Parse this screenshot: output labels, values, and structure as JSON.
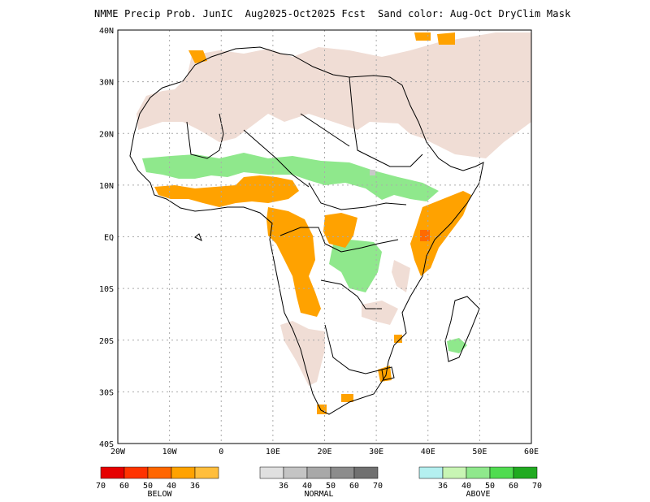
{
  "title": "NMME Precip Prob. JunIC  Aug2025-Oct2025 Fcst  Sand color: Aug-Oct DryClim Mask",
  "axes": {
    "lat_ticks": [
      "40N",
      "30N",
      "20N",
      "10N",
      "EQ",
      "10S",
      "20S",
      "30S",
      "40S"
    ],
    "lon_ticks": [
      "20W",
      "10W",
      "0",
      "10E",
      "20E",
      "30E",
      "40E",
      "50E",
      "60E"
    ]
  },
  "colors": {
    "dry_mask": "#f0ddd5",
    "above": "#8fe88c",
    "below_40": "#ffa200",
    "below_36": "#ffbe3c",
    "below_50": "#ff6a00",
    "normal": "#c8c8c8",
    "grid": "#aaaaaa",
    "coast": "#000000"
  },
  "legend": {
    "below": {
      "label": "BELOW",
      "colors": [
        "#e60000",
        "#ff3300",
        "#ff6600",
        "#ffa200",
        "#ffbe3c"
      ],
      "ticks": [
        "70",
        "60",
        "50",
        "40",
        "36"
      ]
    },
    "normal": {
      "label": "NORMAL",
      "colors": [
        "#e0e0e0",
        "#c4c4c4",
        "#a8a8a8",
        "#8c8c8c",
        "#707070"
      ],
      "ticks": [
        "36",
        "40",
        "50",
        "60",
        "70"
      ]
    },
    "above": {
      "label": "ABOVE",
      "colors": [
        "#b4f0f0",
        "#c8f5b4",
        "#8fe88c",
        "#50dc50",
        "#20aa20"
      ],
      "ticks": [
        "36",
        "40",
        "50",
        "60",
        "70"
      ]
    }
  }
}
